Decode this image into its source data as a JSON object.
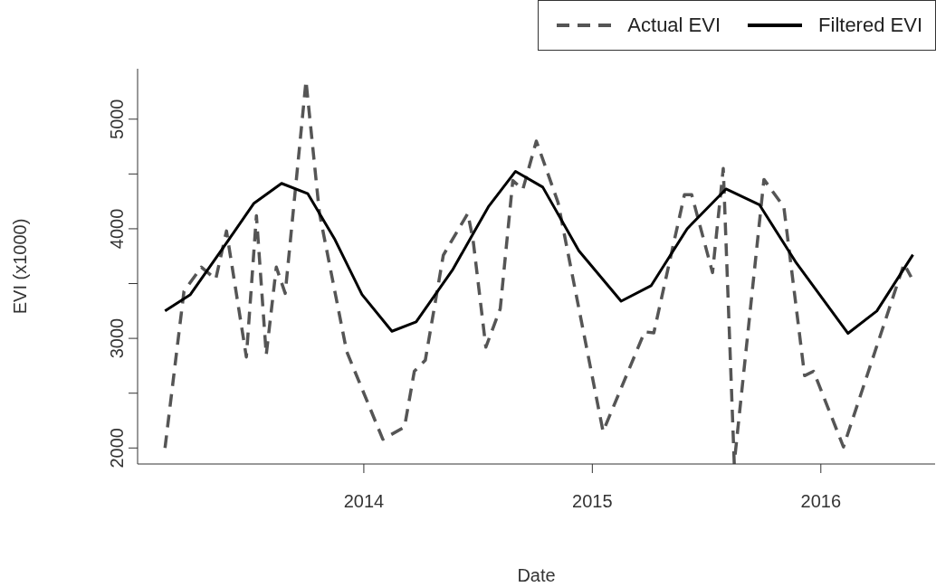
{
  "chart_data": {
    "type": "line",
    "xlabel": "Date",
    "ylabel": "EVI (x1000)",
    "xlim": [
      2013.01,
      2016.5
    ],
    "xticks": [
      2014,
      2015,
      2016
    ],
    "ylim": [
      1854,
      5460
    ],
    "yticks": [
      2000,
      {
        "value": 2500,
        "label": null
      },
      3000,
      {
        "value": 3500,
        "label": null
      },
      4000,
      {
        "value": 4500,
        "label": null
      },
      5000
    ],
    "legend": "top right",
    "series": [
      {
        "name": "Actual EVI",
        "color": "#555555",
        "line_style": "dashed",
        "x": [
          2013.13,
          2013.213,
          2013.289,
          2013.352,
          2013.399,
          2013.486,
          2013.53,
          2013.573,
          2013.617,
          2013.656,
          2013.747,
          2013.806,
          2013.925,
          2014.083,
          2014.178,
          2014.221,
          2014.269,
          2014.348,
          2014.455,
          2014.478,
          2014.534,
          2014.597,
          2014.652,
          2014.696,
          2014.755,
          2014.85,
          2015.047,
          2015.229,
          2015.269,
          2015.403,
          2015.435,
          2015.526,
          2015.573,
          2015.621,
          2015.751,
          2015.838,
          2015.929,
          2015.968,
          2016.099,
          2016.364,
          2016.395
        ],
        "values": [
          2000,
          3430,
          3650,
          3540,
          3980,
          2830,
          4120,
          2850,
          3650,
          3410,
          5350,
          4140,
          2880,
          2080,
          2190,
          2700,
          2800,
          3760,
          4140,
          3900,
          2920,
          3270,
          4440,
          4360,
          4800,
          4240,
          2150,
          3060,
          3050,
          4310,
          4310,
          3600,
          4550,
          1860,
          4450,
          4200,
          2660,
          2700,
          2010,
          3680,
          3560
        ]
      },
      {
        "name": "Filtered EVI",
        "color": "#000000",
        "line_style": "solid",
        "x": [
          2013.13,
          2013.241,
          2013.399,
          2013.518,
          2013.64,
          2013.755,
          2013.874,
          2013.992,
          2014.123,
          2014.229,
          2014.387,
          2014.545,
          2014.664,
          2014.783,
          2014.941,
          2015.126,
          2015.257,
          2015.415,
          2015.585,
          2015.731,
          2015.889,
          2016.119,
          2016.245,
          2016.403
        ],
        "values": [
          3251,
          3400,
          3870,
          4230,
          4414,
          4320,
          3900,
          3400,
          3065,
          3150,
          3620,
          4200,
          4524,
          4380,
          3800,
          3339,
          3480,
          4000,
          4363,
          4220,
          3700,
          3046,
          3250,
          3763
        ]
      }
    ]
  }
}
